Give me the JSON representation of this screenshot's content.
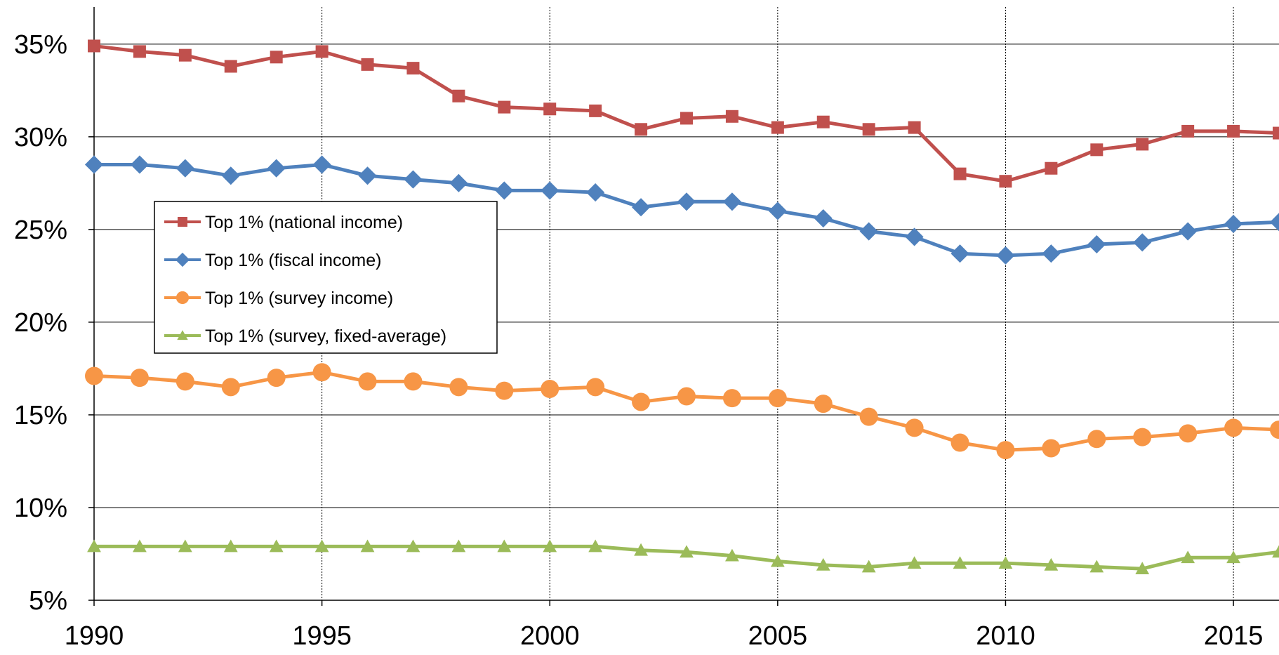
{
  "chart_data": {
    "type": "line",
    "title": "",
    "xlabel": "",
    "ylabel": "",
    "xlim": [
      1990,
      2016
    ],
    "ylim": [
      5,
      37
    ],
    "x_ticks": [
      1990,
      1995,
      2000,
      2005,
      2010,
      2015
    ],
    "x_tick_labels": [
      "1990",
      "1995",
      "2000",
      "2005",
      "2010",
      "2015"
    ],
    "y_ticks": [
      5,
      10,
      15,
      20,
      25,
      30,
      35
    ],
    "y_tick_labels": [
      "5%",
      "10%",
      "15%",
      "20%",
      "25%",
      "30%",
      "35%"
    ],
    "grid": "horizontal solid at y ticks, vertical dotted at x ticks",
    "legend_position": "upper-left inside plot",
    "x": [
      1990,
      1991,
      1992,
      1993,
      1994,
      1995,
      1996,
      1997,
      1998,
      1999,
      2000,
      2001,
      2002,
      2003,
      2004,
      2005,
      2006,
      2007,
      2008,
      2009,
      2010,
      2011,
      2012,
      2013,
      2014,
      2015,
      2016
    ],
    "series": [
      {
        "name": "Top 1% (national income)",
        "color": "#C0504D",
        "marker": "square",
        "values": [
          34.9,
          34.6,
          34.4,
          33.8,
          34.3,
          34.6,
          33.9,
          33.7,
          32.2,
          31.6,
          31.5,
          31.4,
          30.4,
          31.0,
          31.1,
          30.5,
          30.8,
          30.4,
          30.5,
          28.0,
          27.6,
          28.3,
          29.3,
          29.6,
          30.3,
          30.3,
          30.2
        ]
      },
      {
        "name": "Top 1% (fiscal income)",
        "color": "#4F81BD",
        "marker": "diamond",
        "values": [
          28.5,
          28.5,
          28.3,
          27.9,
          28.3,
          28.5,
          27.9,
          27.7,
          27.5,
          27.1,
          27.1,
          27.0,
          26.2,
          26.5,
          26.5,
          26.0,
          25.6,
          24.9,
          24.6,
          23.7,
          23.6,
          23.7,
          24.2,
          24.3,
          24.9,
          25.3,
          25.4
        ]
      },
      {
        "name": "Top 1% (survey income)",
        "color": "#F79646",
        "marker": "circle",
        "values": [
          17.1,
          17.0,
          16.8,
          16.5,
          17.0,
          17.3,
          16.8,
          16.8,
          16.5,
          16.3,
          16.4,
          16.5,
          15.7,
          16.0,
          15.9,
          15.9,
          15.6,
          14.9,
          14.3,
          13.5,
          13.1,
          13.2,
          13.7,
          13.8,
          14.0,
          14.3,
          14.2
        ]
      },
      {
        "name": "Top 1% (survey, fixed-average)",
        "color": "#9BBB59",
        "marker": "triangle",
        "values": [
          7.9,
          7.9,
          7.9,
          7.9,
          7.9,
          7.9,
          7.9,
          7.9,
          7.9,
          7.9,
          7.9,
          7.9,
          7.7,
          7.6,
          7.4,
          7.1,
          6.9,
          6.8,
          7.0,
          7.0,
          7.0,
          6.9,
          6.8,
          6.7,
          7.3,
          7.3,
          7.6
        ]
      }
    ]
  }
}
